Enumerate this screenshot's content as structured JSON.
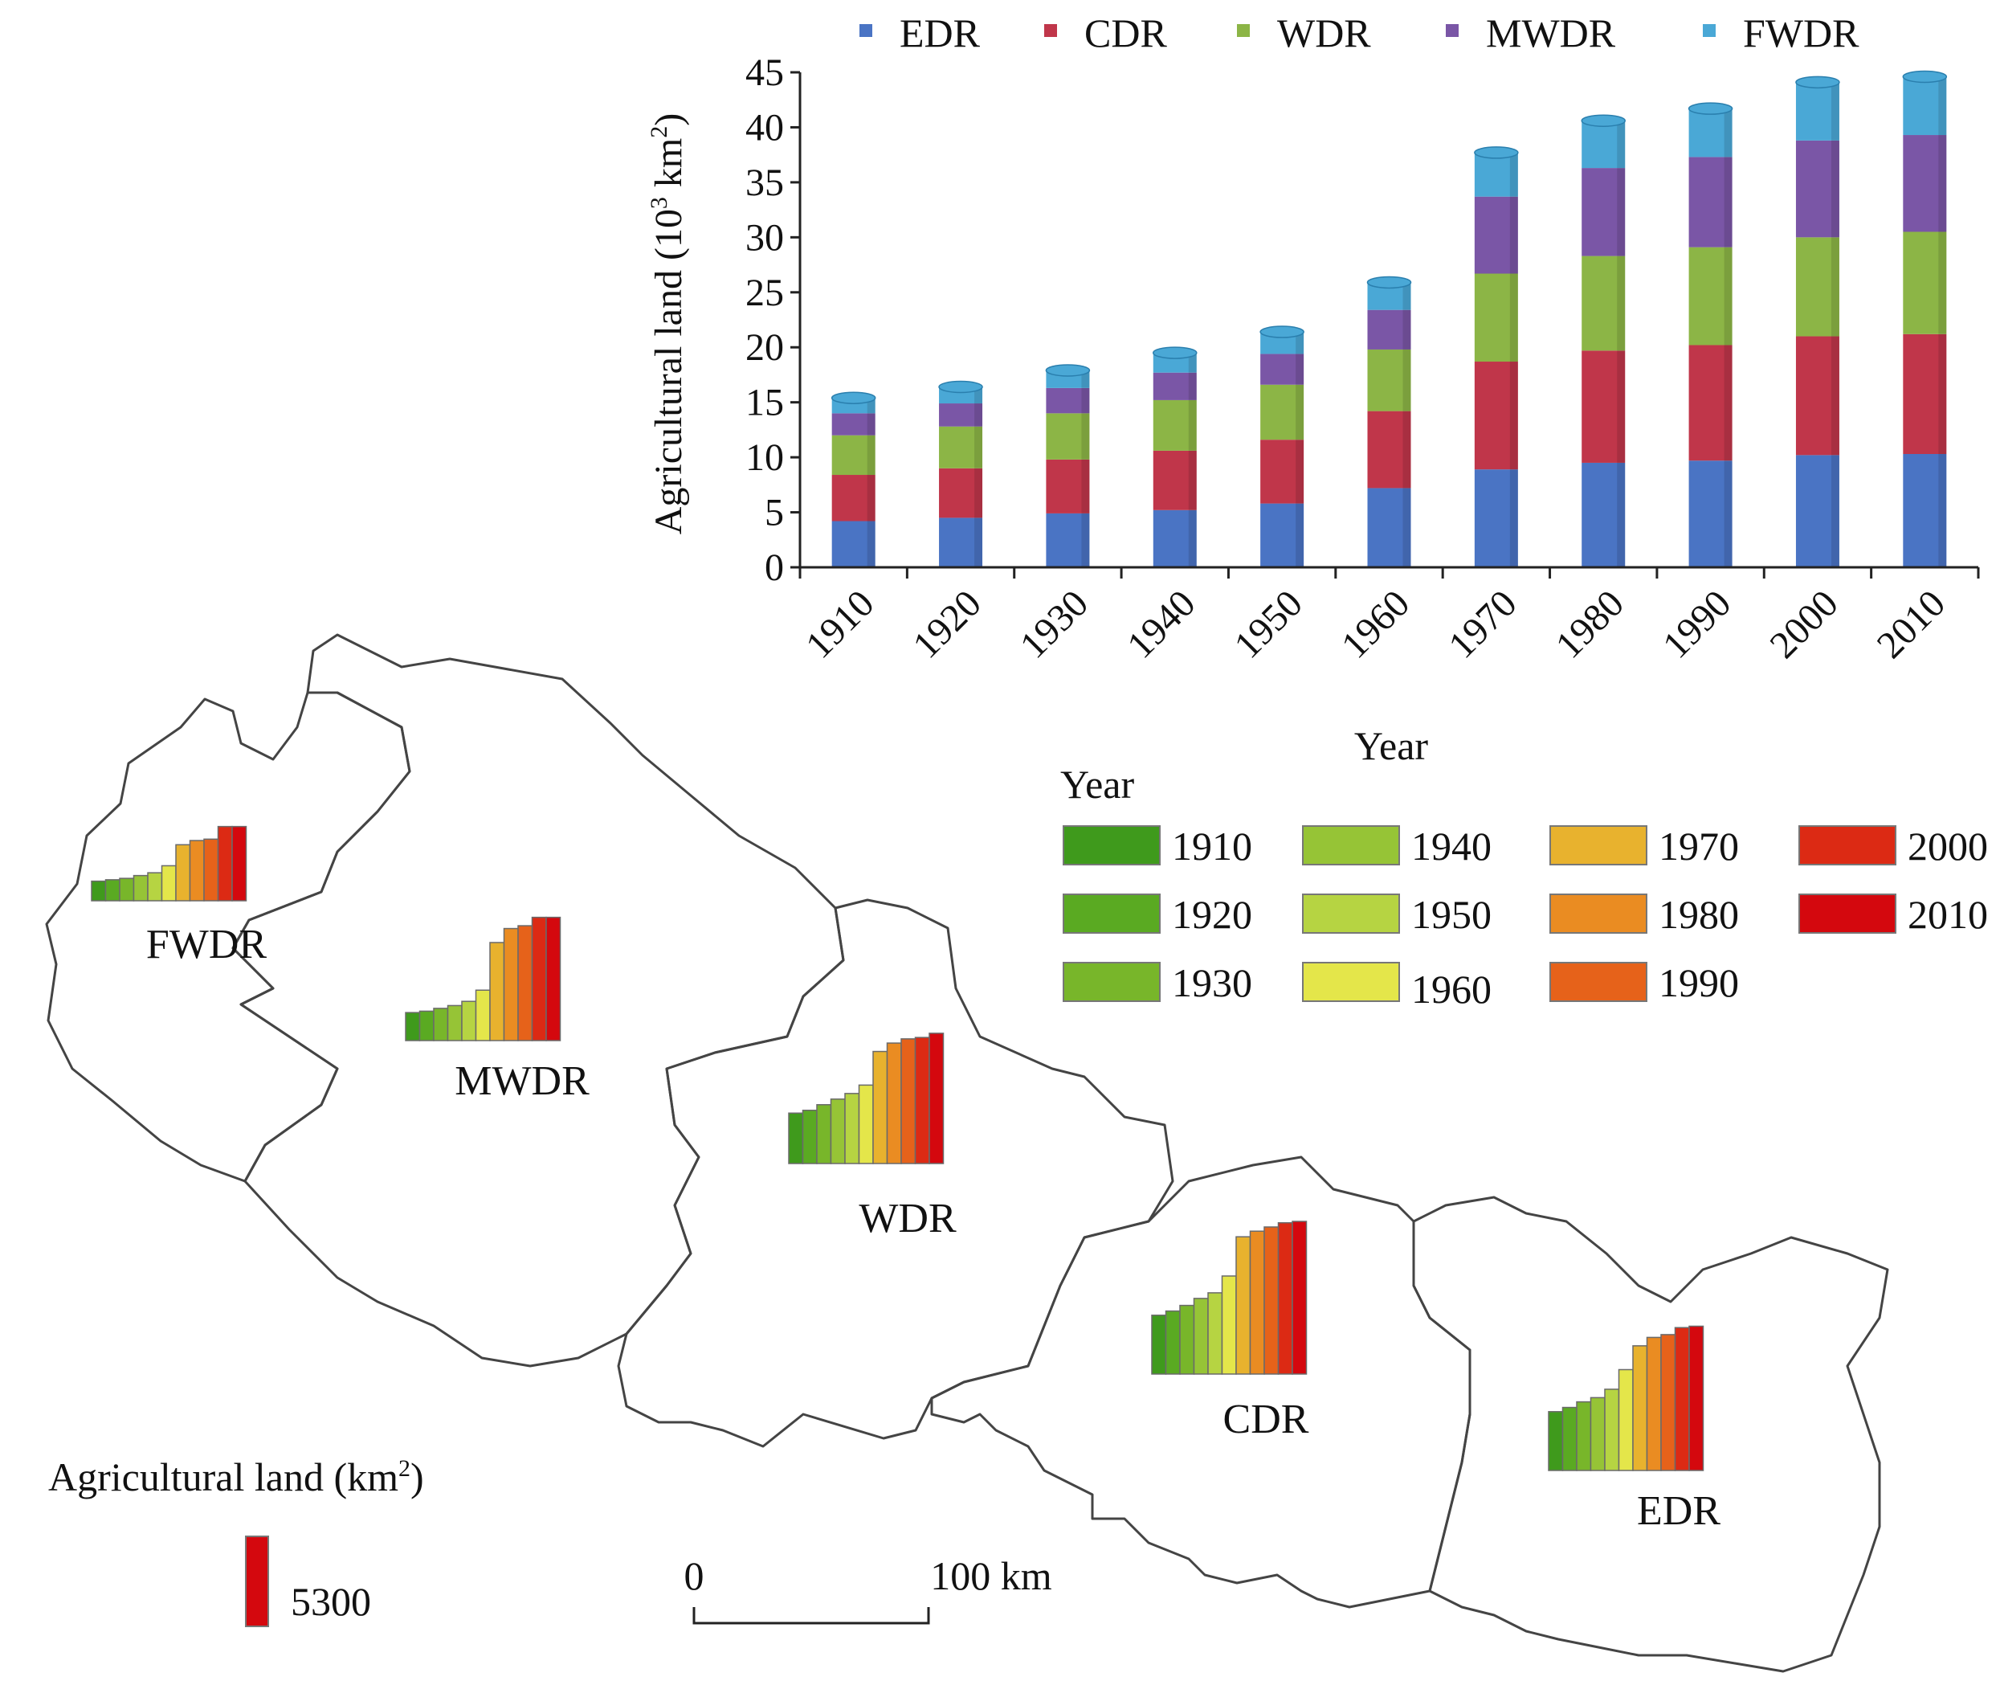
{
  "chart_data": {
    "type": "bar",
    "stacked": true,
    "categories": [
      "1910",
      "1920",
      "1930",
      "1940",
      "1950",
      "1960",
      "1970",
      "1980",
      "1990",
      "2000",
      "2010"
    ],
    "xlabel": "Year",
    "ylabel_main": "Agricultural land (10",
    "ylabel_sup": "3",
    "ylabel_mid": " km",
    "ylabel_sup2": "2",
    "ylabel_end": ")",
    "ylim": [
      0,
      45
    ],
    "yticks": [
      0,
      5,
      10,
      15,
      20,
      25,
      30,
      35,
      40,
      45
    ],
    "legend_position": "top",
    "series": [
      {
        "name": "EDR",
        "color": "#4a74c4",
        "values": [
          4.2,
          4.5,
          4.9,
          5.2,
          5.8,
          7.2,
          8.9,
          9.5,
          9.7,
          10.2,
          10.3
        ]
      },
      {
        "name": "CDR",
        "color": "#c0364a",
        "values": [
          4.2,
          4.5,
          4.9,
          5.4,
          5.8,
          7.0,
          9.8,
          10.2,
          10.5,
          10.8,
          10.9
        ]
      },
      {
        "name": "WDR",
        "color": "#8cb546",
        "values": [
          3.6,
          3.8,
          4.2,
          4.6,
          5.0,
          5.6,
          8.0,
          8.6,
          8.9,
          9.0,
          9.3
        ]
      },
      {
        "name": "MWDR",
        "color": "#7a56a6",
        "values": [
          2.0,
          2.1,
          2.3,
          2.5,
          2.8,
          3.6,
          7.0,
          8.0,
          8.2,
          8.8,
          8.8
        ]
      },
      {
        "name": "FWDR",
        "color": "#4aa8d6",
        "values": [
          1.4,
          1.5,
          1.6,
          1.8,
          2.0,
          2.5,
          4.0,
          4.3,
          4.4,
          5.3,
          5.3
        ]
      }
    ]
  },
  "map": {
    "year_legend_title": "Year",
    "year_legend": [
      {
        "label": "1910",
        "color": "#3f9a1c"
      },
      {
        "label": "1920",
        "color": "#5aaa22"
      },
      {
        "label": "1930",
        "color": "#78b62a"
      },
      {
        "label": "1940",
        "color": "#96c436"
      },
      {
        "label": "1950",
        "color": "#b6d442"
      },
      {
        "label": "1960",
        "color": "#e4e64a"
      },
      {
        "label": "1970",
        "color": "#e8b22e"
      },
      {
        "label": "1980",
        "color": "#ea8c22"
      },
      {
        "label": "1990",
        "color": "#e6621a"
      },
      {
        "label": "2000",
        "color": "#dc2a14"
      },
      {
        "label": "2010",
        "color": "#d4080e"
      }
    ],
    "regions": [
      {
        "name": "FWDR",
        "values": [
          1400,
          1500,
          1600,
          1800,
          2000,
          2500,
          4000,
          4300,
          4400,
          5300,
          5300
        ]
      },
      {
        "name": "MWDR",
        "values": [
          2000,
          2100,
          2300,
          2500,
          2800,
          3600,
          7000,
          8000,
          8200,
          8800,
          8800
        ]
      },
      {
        "name": "WDR",
        "values": [
          3600,
          3800,
          4200,
          4600,
          5000,
          5600,
          8000,
          8600,
          8900,
          9000,
          9300
        ]
      },
      {
        "name": "CDR",
        "values": [
          4200,
          4500,
          4900,
          5400,
          5800,
          7000,
          9800,
          10200,
          10500,
          10800,
          10900
        ]
      },
      {
        "name": "EDR",
        "values": [
          4200,
          4500,
          4900,
          5200,
          5800,
          7200,
          8900,
          9500,
          9700,
          10200,
          10300
        ]
      }
    ],
    "size_legend_title_main": "Agricultural land (km",
    "size_legend_title_sup": "2",
    "size_legend_title_end": ")",
    "size_legend_value_label": "5300",
    "size_legend_value": 5300,
    "scale_bar_start": "0",
    "scale_bar_end": "100 km"
  }
}
